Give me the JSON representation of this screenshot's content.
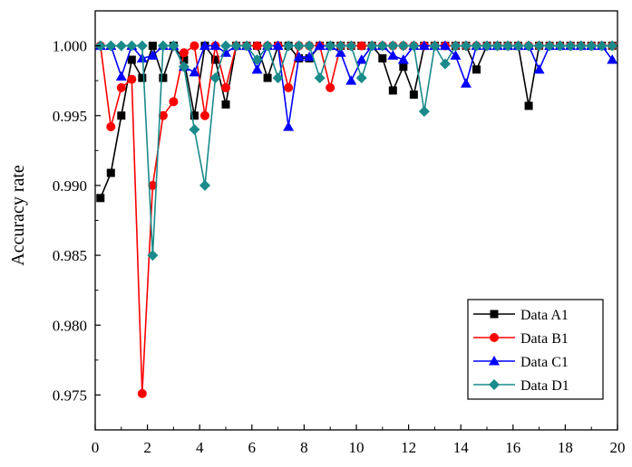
{
  "chart_data": {
    "type": "line",
    "title": "",
    "xlabel": "",
    "ylabel": "Accuracy rate",
    "xlim": [
      0,
      20
    ],
    "ylim": [
      0.9725,
      1.0025
    ],
    "xticks": [
      "0",
      "2",
      "4",
      "6",
      "8",
      "10",
      "12",
      "14",
      "16",
      "18",
      "20"
    ],
    "yticks": [
      "0.975",
      "0.980",
      "0.985",
      "0.990",
      "0.995",
      "1.000"
    ],
    "grid": false,
    "legend_position": "bottom-right",
    "series": [
      {
        "name": "Data A1",
        "color": "#000000",
        "marker": "square",
        "points": [
          [
            0.2,
            0.9891
          ],
          [
            0.6,
            0.9909
          ],
          [
            1.0,
            0.995
          ],
          [
            1.4,
            0.999
          ],
          [
            1.8,
            0.9977
          ],
          [
            2.2,
            1.0
          ],
          [
            2.6,
            0.9977
          ],
          [
            3.0,
            1.0
          ],
          [
            3.4,
            0.999
          ],
          [
            3.8,
            0.995
          ],
          [
            4.2,
            1.0
          ],
          [
            4.6,
            0.999
          ],
          [
            5.0,
            0.9958
          ],
          [
            5.4,
            1.0
          ],
          [
            5.8,
            1.0
          ],
          [
            6.2,
            1.0
          ],
          [
            6.6,
            0.9977
          ],
          [
            7.0,
            1.0
          ],
          [
            7.4,
            1.0
          ],
          [
            7.8,
            0.9991
          ],
          [
            8.2,
            0.9991
          ],
          [
            8.6,
            1.0
          ],
          [
            9.0,
            1.0
          ],
          [
            9.4,
            1.0
          ],
          [
            9.8,
            1.0
          ],
          [
            10.2,
            1.0
          ],
          [
            10.6,
            1.0
          ],
          [
            11.0,
            0.9991
          ],
          [
            11.4,
            0.9968
          ],
          [
            11.8,
            0.9985
          ],
          [
            12.2,
            0.9965
          ],
          [
            12.6,
            1.0
          ],
          [
            13.0,
            1.0
          ],
          [
            13.4,
            1.0
          ],
          [
            13.8,
            1.0
          ],
          [
            14.2,
            1.0
          ],
          [
            14.6,
            0.9983
          ],
          [
            15.0,
            1.0
          ],
          [
            15.4,
            1.0
          ],
          [
            15.8,
            1.0
          ],
          [
            16.2,
            1.0
          ],
          [
            16.6,
            0.9957
          ],
          [
            17.0,
            1.0
          ],
          [
            17.4,
            1.0
          ],
          [
            17.8,
            1.0
          ],
          [
            18.2,
            1.0
          ],
          [
            18.6,
            1.0
          ],
          [
            19.0,
            1.0
          ],
          [
            19.4,
            1.0
          ],
          [
            19.8,
            1.0
          ]
        ]
      },
      {
        "name": "Data B1",
        "color": "#ff0000",
        "marker": "circle",
        "points": [
          [
            0.2,
            1.0
          ],
          [
            0.6,
            0.9942
          ],
          [
            1.0,
            0.997
          ],
          [
            1.4,
            0.9976
          ],
          [
            1.8,
            0.9751
          ],
          [
            2.2,
            0.99
          ],
          [
            2.6,
            0.995
          ],
          [
            3.0,
            0.996
          ],
          [
            3.4,
            0.9995
          ],
          [
            3.8,
            1.0
          ],
          [
            4.2,
            0.995
          ],
          [
            4.6,
            1.0
          ],
          [
            5.0,
            0.997
          ],
          [
            5.4,
            1.0
          ],
          [
            5.8,
            1.0
          ],
          [
            6.2,
            1.0
          ],
          [
            6.6,
            1.0
          ],
          [
            7.0,
            1.0
          ],
          [
            7.4,
            0.997
          ],
          [
            7.8,
            1.0
          ],
          [
            8.2,
            1.0
          ],
          [
            8.6,
            1.0
          ],
          [
            9.0,
            0.997
          ],
          [
            9.4,
            1.0
          ],
          [
            9.8,
            1.0
          ],
          [
            10.2,
            1.0
          ],
          [
            10.6,
            1.0
          ],
          [
            11.0,
            1.0
          ],
          [
            11.4,
            1.0
          ],
          [
            11.8,
            1.0
          ],
          [
            12.2,
            1.0
          ],
          [
            12.6,
            1.0
          ],
          [
            13.0,
            1.0
          ],
          [
            13.4,
            1.0
          ],
          [
            13.8,
            1.0
          ],
          [
            14.2,
            1.0
          ],
          [
            14.6,
            1.0
          ],
          [
            15.0,
            1.0
          ],
          [
            15.4,
            1.0
          ],
          [
            15.8,
            1.0
          ],
          [
            16.2,
            1.0
          ],
          [
            16.6,
            1.0
          ],
          [
            17.0,
            1.0
          ],
          [
            17.4,
            1.0
          ],
          [
            17.8,
            1.0
          ],
          [
            18.2,
            1.0
          ],
          [
            18.6,
            1.0
          ],
          [
            19.0,
            1.0
          ],
          [
            19.4,
            1.0
          ],
          [
            19.8,
            1.0
          ]
        ]
      },
      {
        "name": "Data C1",
        "color": "#0000ff",
        "marker": "triangle",
        "points": [
          [
            0.2,
            1.0
          ],
          [
            0.6,
            1.0
          ],
          [
            1.0,
            0.9978
          ],
          [
            1.4,
            1.0
          ],
          [
            1.8,
            0.9991
          ],
          [
            2.2,
            0.9993
          ],
          [
            2.6,
            1.0
          ],
          [
            3.0,
            1.0
          ],
          [
            3.4,
            0.9985
          ],
          [
            3.8,
            0.9981
          ],
          [
            4.2,
            1.0
          ],
          [
            4.6,
            1.0
          ],
          [
            5.0,
            0.9995
          ],
          [
            5.4,
            1.0
          ],
          [
            5.8,
            1.0
          ],
          [
            6.2,
            0.9983
          ],
          [
            6.6,
            1.0
          ],
          [
            7.0,
            1.0
          ],
          [
            7.4,
            0.9942
          ],
          [
            7.8,
            0.9992
          ],
          [
            8.2,
            0.9992
          ],
          [
            8.6,
            1.0
          ],
          [
            9.0,
            1.0
          ],
          [
            9.4,
            0.9995
          ],
          [
            9.8,
            0.9975
          ],
          [
            10.2,
            0.999
          ],
          [
            10.6,
            1.0
          ],
          [
            11.0,
            1.0
          ],
          [
            11.4,
            0.9993
          ],
          [
            11.8,
            0.999
          ],
          [
            12.2,
            1.0
          ],
          [
            12.6,
            1.0
          ],
          [
            13.0,
            1.0
          ],
          [
            13.4,
            1.0
          ],
          [
            13.8,
            0.9993
          ],
          [
            14.2,
            0.9973
          ],
          [
            14.6,
            1.0
          ],
          [
            15.0,
            1.0
          ],
          [
            15.4,
            1.0
          ],
          [
            15.8,
            1.0
          ],
          [
            16.2,
            1.0
          ],
          [
            16.6,
            1.0
          ],
          [
            17.0,
            0.9983
          ],
          [
            17.4,
            1.0
          ],
          [
            17.8,
            1.0
          ],
          [
            18.2,
            1.0
          ],
          [
            18.6,
            1.0
          ],
          [
            19.0,
            1.0
          ],
          [
            19.4,
            1.0
          ],
          [
            19.8,
            0.999
          ]
        ]
      },
      {
        "name": "Data D1",
        "color": "#1a8a8a",
        "marker": "diamond",
        "points": [
          [
            0.2,
            1.0
          ],
          [
            0.6,
            1.0
          ],
          [
            1.0,
            1.0
          ],
          [
            1.4,
            1.0
          ],
          [
            1.8,
            1.0
          ],
          [
            2.2,
            0.985
          ],
          [
            2.6,
            1.0
          ],
          [
            3.0,
            1.0
          ],
          [
            3.4,
            0.9985
          ],
          [
            3.8,
            0.994
          ],
          [
            4.2,
            0.99
          ],
          [
            4.6,
            0.9977
          ],
          [
            5.0,
            1.0
          ],
          [
            5.4,
            1.0
          ],
          [
            5.8,
            1.0
          ],
          [
            6.2,
            0.999
          ],
          [
            6.6,
            1.0
          ],
          [
            7.0,
            0.9977
          ],
          [
            7.4,
            1.0
          ],
          [
            7.8,
            1.0
          ],
          [
            8.2,
            1.0
          ],
          [
            8.6,
            0.9977
          ],
          [
            9.0,
            1.0
          ],
          [
            9.4,
            1.0
          ],
          [
            9.8,
            1.0
          ],
          [
            10.2,
            0.9977
          ],
          [
            10.6,
            1.0
          ],
          [
            11.0,
            1.0
          ],
          [
            11.4,
            1.0
          ],
          [
            11.8,
            1.0
          ],
          [
            12.2,
            1.0
          ],
          [
            12.6,
            0.9953
          ],
          [
            13.0,
            1.0
          ],
          [
            13.4,
            0.9987
          ],
          [
            13.8,
            1.0
          ],
          [
            14.2,
            1.0
          ],
          [
            14.6,
            1.0
          ],
          [
            15.0,
            1.0
          ],
          [
            15.4,
            1.0
          ],
          [
            15.8,
            1.0
          ],
          [
            16.2,
            1.0
          ],
          [
            16.6,
            1.0
          ],
          [
            17.0,
            1.0
          ],
          [
            17.4,
            1.0
          ],
          [
            17.8,
            1.0
          ],
          [
            18.2,
            1.0
          ],
          [
            18.6,
            1.0
          ],
          [
            19.0,
            1.0
          ],
          [
            19.4,
            1.0
          ],
          [
            19.8,
            1.0
          ]
        ]
      }
    ]
  }
}
